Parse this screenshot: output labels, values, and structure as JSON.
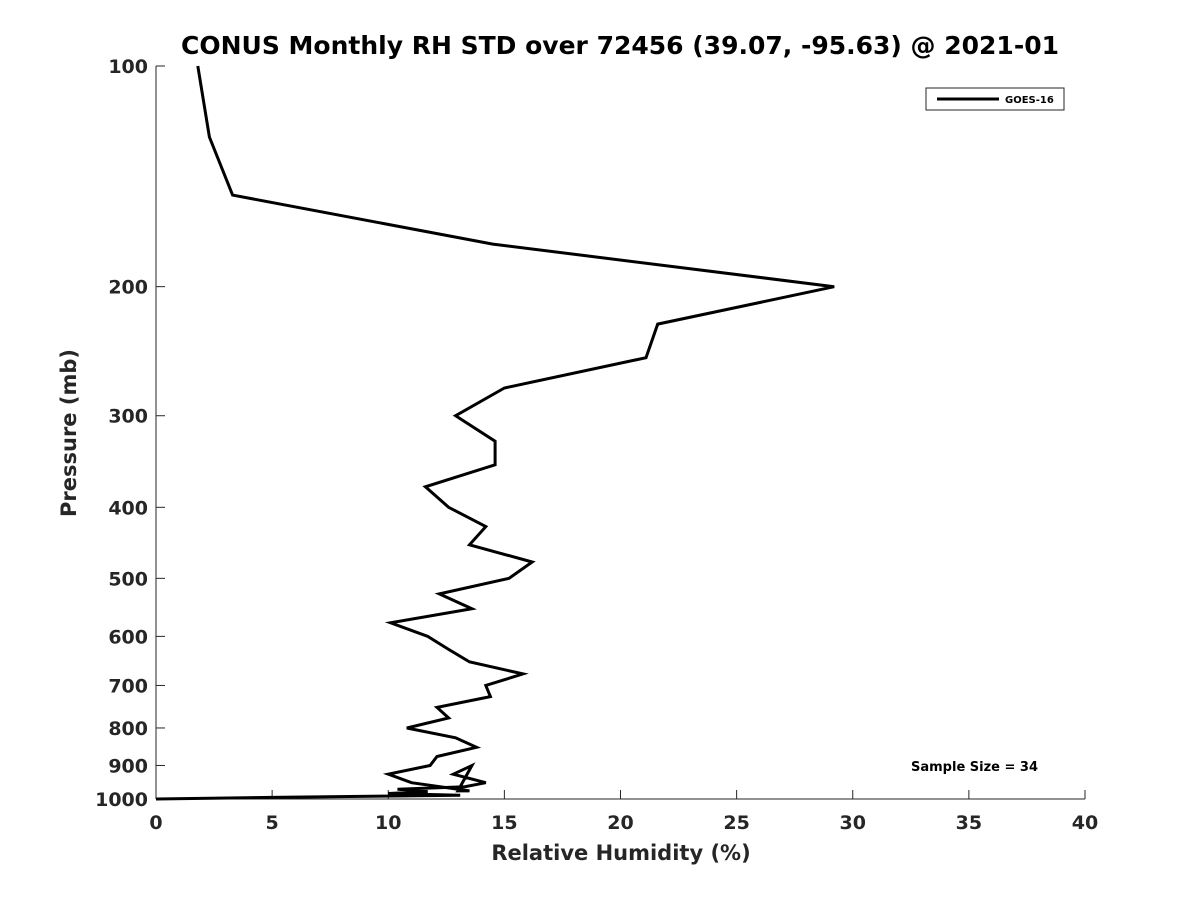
{
  "chart_data": {
    "type": "line",
    "title": "CONUS Monthly RH STD over 72456 (39.07, -95.63) @ 2021-01",
    "xlabel": "Relative Humidity (%)",
    "ylabel": "Pressure (mb)",
    "xlim": [
      0,
      40
    ],
    "ylim": [
      100,
      1000
    ],
    "y_scale": "log",
    "y_reversed": true,
    "x_ticks": [
      0,
      5,
      10,
      15,
      20,
      25,
      30,
      35,
      40
    ],
    "y_ticks": [
      100,
      200,
      300,
      400,
      500,
      600,
      700,
      800,
      900,
      1000
    ],
    "grid": false,
    "legend_position": "top-right",
    "series": [
      {
        "name": "GOES-16",
        "color": "#000000",
        "points": [
          [
            1.8,
            100
          ],
          [
            2.3,
            125
          ],
          [
            3.3,
            150
          ],
          [
            14.5,
            175
          ],
          [
            29.2,
            200
          ],
          [
            21.6,
            225
          ],
          [
            21.1,
            250
          ],
          [
            15.0,
            275
          ],
          [
            12.9,
            300
          ],
          [
            14.6,
            325
          ],
          [
            14.6,
            350
          ],
          [
            11.6,
            375
          ],
          [
            12.6,
            400
          ],
          [
            14.2,
            425
          ],
          [
            13.5,
            450
          ],
          [
            16.2,
            475
          ],
          [
            15.2,
            500
          ],
          [
            12.2,
            525
          ],
          [
            13.6,
            550
          ],
          [
            10.1,
            575
          ],
          [
            11.7,
            600
          ],
          [
            12.6,
            625
          ],
          [
            13.5,
            650
          ],
          [
            15.8,
            675
          ],
          [
            14.2,
            700
          ],
          [
            14.4,
            725
          ],
          [
            12.1,
            750
          ],
          [
            12.6,
            775
          ],
          [
            10.8,
            800
          ],
          [
            12.9,
            825
          ],
          [
            13.8,
            850
          ],
          [
            12.1,
            875
          ],
          [
            11.8,
            900
          ],
          [
            10.0,
            925
          ],
          [
            11.0,
            950
          ],
          [
            13.5,
            975
          ],
          [
            13.0,
            975
          ],
          [
            13.6,
            900
          ],
          [
            12.8,
            925
          ],
          [
            14.2,
            950
          ],
          [
            13.3,
            962
          ],
          [
            10.4,
            970
          ],
          [
            11.7,
            977
          ],
          [
            10.0,
            983
          ],
          [
            13.1,
            988
          ],
          [
            5.0,
            995
          ],
          [
            0.0,
            1000
          ]
        ]
      }
    ],
    "annotations": [
      "Sample Size = 34"
    ]
  }
}
